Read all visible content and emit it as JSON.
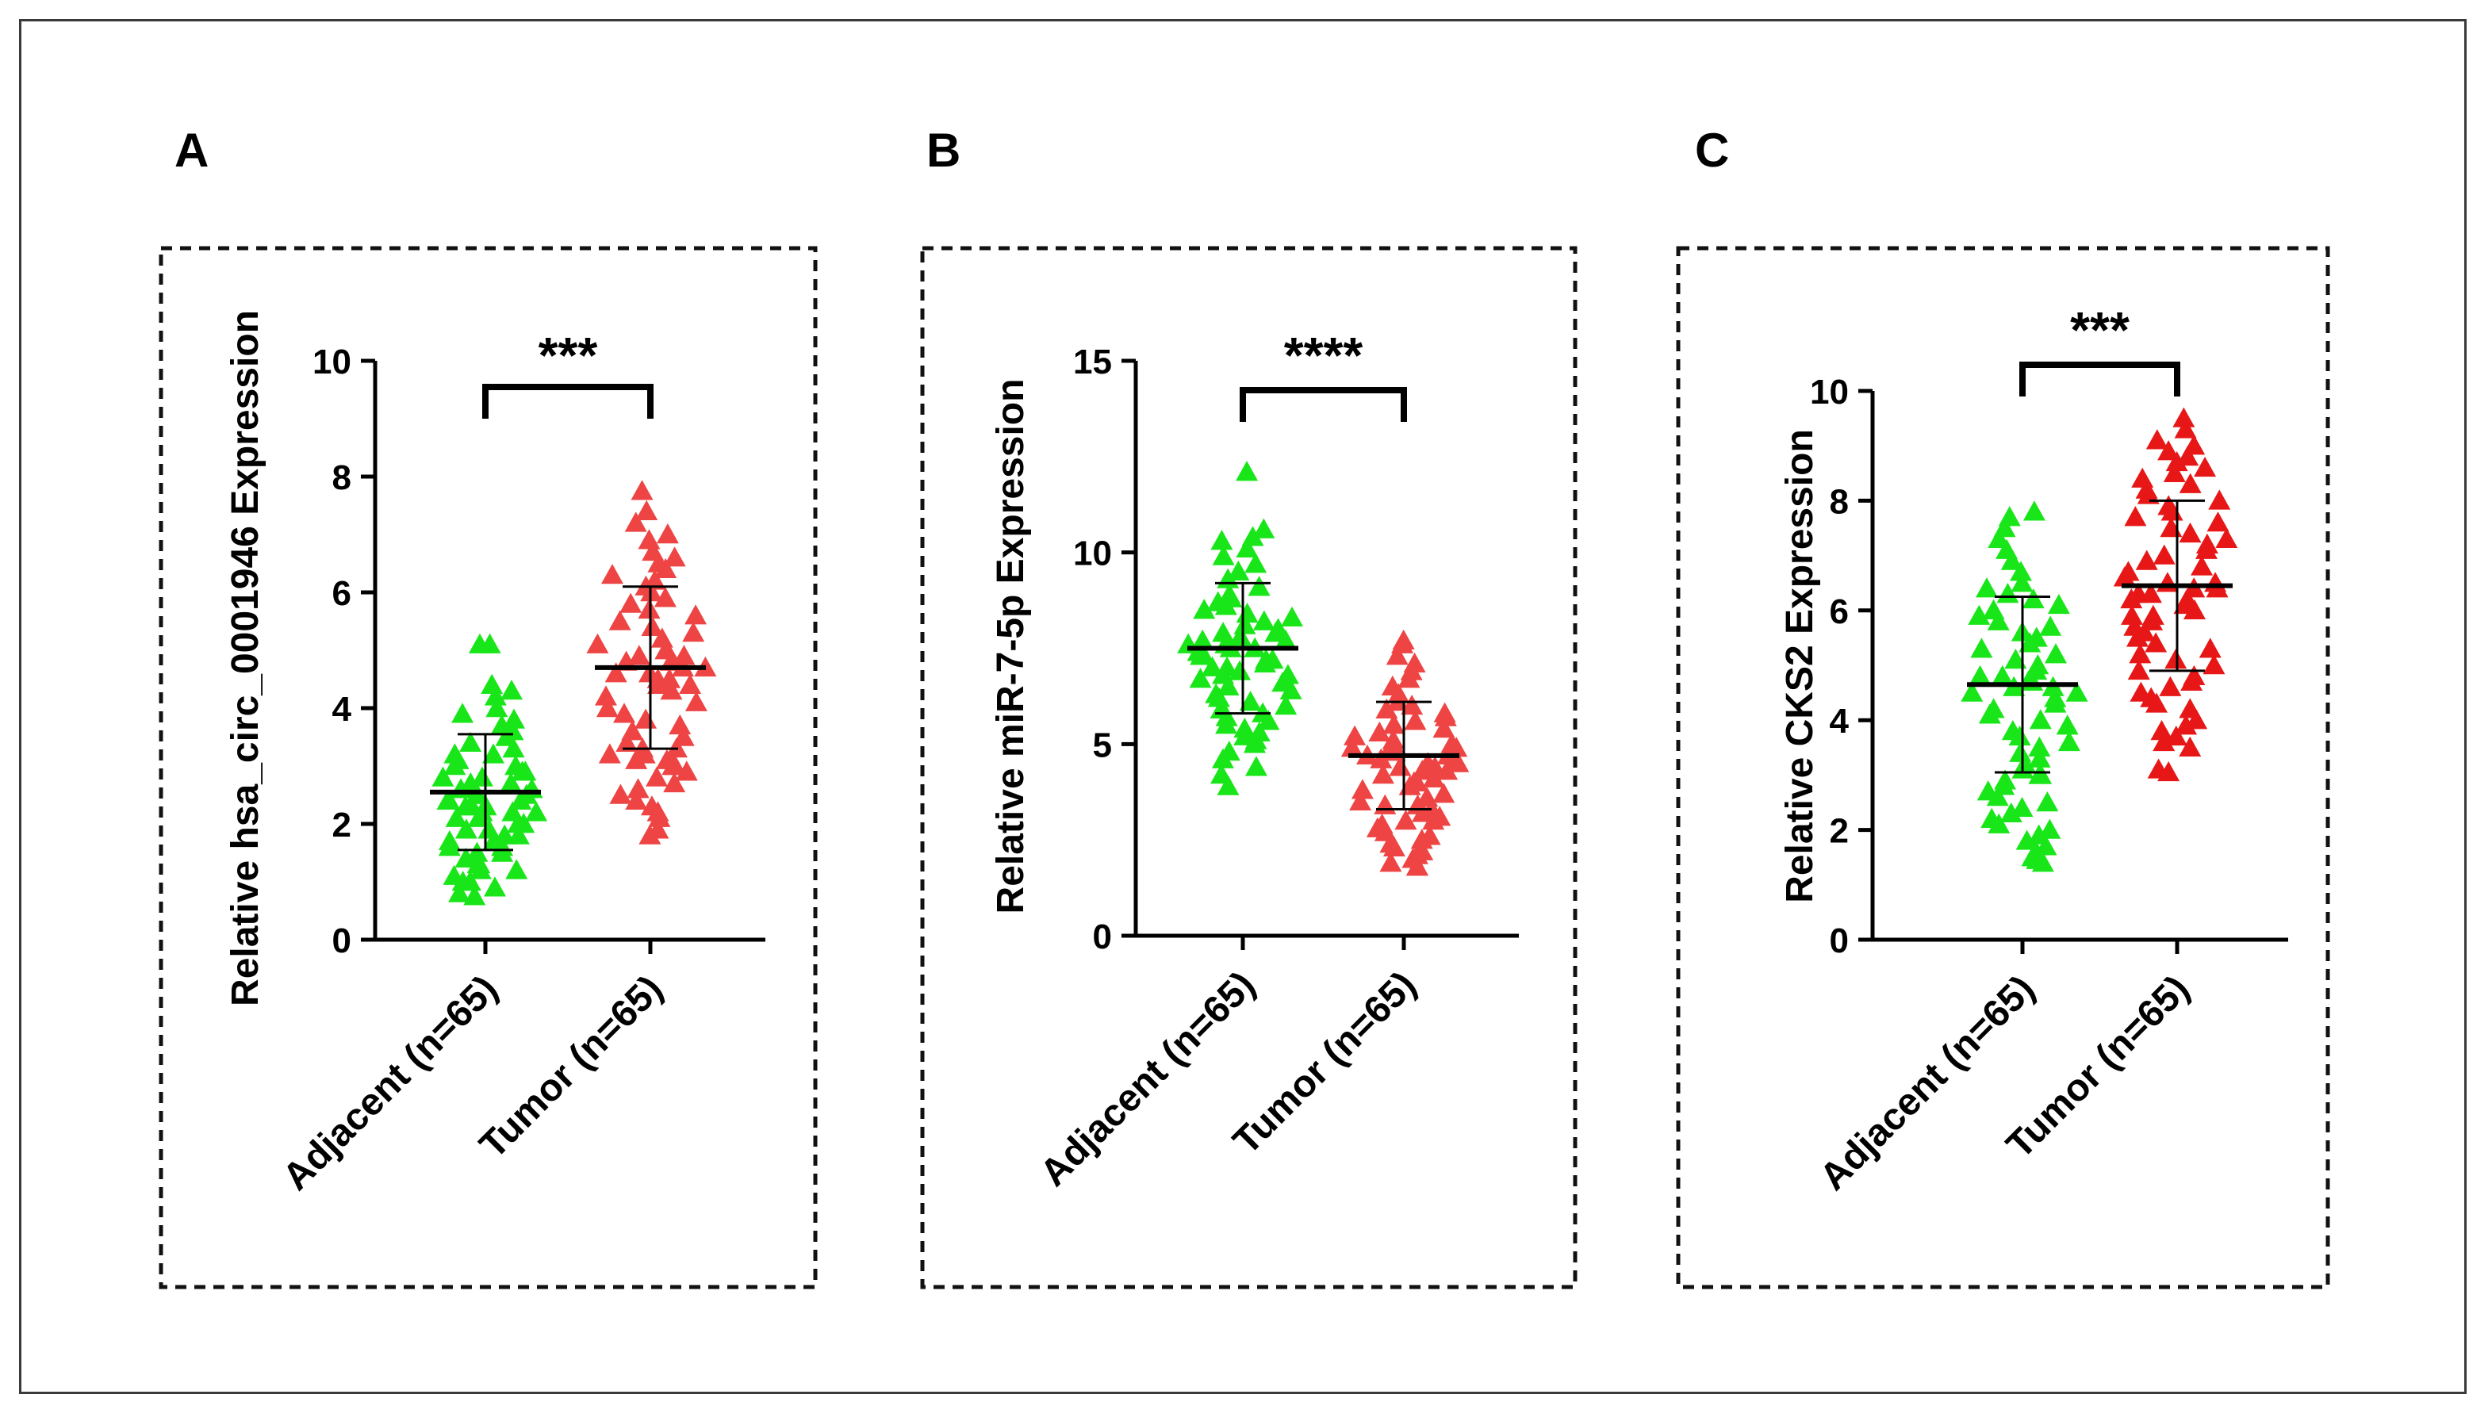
{
  "figure": {
    "colors": {
      "adjacent": "#19e619",
      "tumor_A": "#ee4444",
      "tumor_B": "#ee4444",
      "tumor_C": "#e81717",
      "axis": "#000000"
    }
  },
  "chart_data": [
    {
      "type": "scatter",
      "panel": "A",
      "title": "",
      "xlabel": "",
      "ylabel": "Relative hsa_circ_0001946 Expression",
      "ylim": [
        0,
        10
      ],
      "yticks": [
        "0",
        "2",
        "4",
        "6",
        "8",
        "10"
      ],
      "categories": [
        "Adjacent (n=65)",
        "Tumor (n=65)"
      ],
      "significance": "***",
      "series": [
        {
          "name": "Adjacent (n=65)",
          "mean": 2.55,
          "sd_low": 1.55,
          "sd_high": 3.55,
          "values": [
            5.1,
            5.1,
            4.4,
            4.3,
            4.2,
            4.0,
            3.9,
            3.8,
            3.7,
            3.6,
            3.5,
            3.4,
            3.3,
            3.2,
            3.2,
            3.1,
            3.0,
            3.0,
            2.9,
            2.9,
            2.8,
            2.8,
            2.7,
            2.7,
            2.6,
            2.6,
            2.6,
            2.5,
            2.5,
            2.5,
            2.4,
            2.4,
            2.4,
            2.3,
            2.3,
            2.3,
            2.2,
            2.2,
            2.2,
            2.1,
            2.1,
            2.0,
            2.0,
            1.9,
            1.9,
            1.8,
            1.8,
            1.7,
            1.7,
            1.6,
            1.6,
            1.5,
            1.5,
            1.4,
            1.4,
            1.3,
            1.3,
            1.2,
            1.2,
            1.1,
            1.0,
            1.0,
            0.9,
            0.8,
            0.75
          ]
        },
        {
          "name": "Tumor (n=65)",
          "mean": 4.7,
          "sd_low": 3.3,
          "sd_high": 6.1,
          "values": [
            7.75,
            7.4,
            7.2,
            7.0,
            6.9,
            6.7,
            6.6,
            6.5,
            6.4,
            6.3,
            6.2,
            6.1,
            6.0,
            5.9,
            5.8,
            5.7,
            5.6,
            5.5,
            5.4,
            5.3,
            5.2,
            5.1,
            5.0,
            5.0,
            4.9,
            4.9,
            4.8,
            4.8,
            4.7,
            4.7,
            4.6,
            4.6,
            4.5,
            4.5,
            4.4,
            4.4,
            4.3,
            4.2,
            4.1,
            4.0,
            3.9,
            3.8,
            3.7,
            3.6,
            3.5,
            3.4,
            3.3,
            3.3,
            3.2,
            3.2,
            3.1,
            3.1,
            3.0,
            3.0,
            2.9,
            2.8,
            2.7,
            2.6,
            2.5,
            2.4,
            2.3,
            2.2,
            2.1,
            1.9,
            1.8
          ]
        }
      ]
    },
    {
      "type": "scatter",
      "panel": "B",
      "title": "",
      "xlabel": "",
      "ylabel": "Relative miR-7-5p Expression",
      "ylim": [
        0,
        15
      ],
      "yticks": [
        "0",
        "5",
        "10",
        "15"
      ],
      "categories": [
        "Adjacent (n=65)",
        "Tumor (n=65)"
      ],
      "significance": "****",
      "series": [
        {
          "name": "Adjacent (n=65)",
          "mean": 7.5,
          "sd_low": 5.8,
          "sd_high": 9.2,
          "values": [
            12.1,
            10.6,
            10.4,
            10.3,
            10.1,
            9.9,
            9.7,
            9.5,
            9.3,
            9.1,
            8.9,
            8.8,
            8.7,
            8.6,
            8.5,
            8.4,
            8.3,
            8.2,
            8.1,
            8.0,
            7.9,
            7.9,
            7.8,
            7.8,
            7.7,
            7.7,
            7.6,
            7.6,
            7.5,
            7.5,
            7.4,
            7.4,
            7.3,
            7.3,
            7.2,
            7.2,
            7.1,
            7.0,
            7.0,
            6.9,
            6.8,
            6.8,
            6.7,
            6.6,
            6.5,
            6.4,
            6.3,
            6.2,
            6.1,
            6.0,
            5.9,
            5.8,
            5.7,
            5.6,
            5.5,
            5.4,
            5.3,
            5.2,
            5.1,
            5.0,
            4.8,
            4.6,
            4.4,
            4.2,
            3.9
          ]
        },
        {
          "name": "Tumor (n=65)",
          "mean": 4.7,
          "sd_low": 3.3,
          "sd_high": 6.1,
          "values": [
            7.7,
            7.6,
            7.3,
            7.1,
            6.9,
            6.7,
            6.5,
            6.3,
            6.1,
            6.0,
            5.9,
            5.8,
            5.7,
            5.6,
            5.5,
            5.4,
            5.3,
            5.2,
            5.1,
            5.0,
            5.0,
            4.9,
            4.9,
            4.8,
            4.8,
            4.7,
            4.7,
            4.6,
            4.6,
            4.5,
            4.5,
            4.4,
            4.4,
            4.3,
            4.3,
            4.2,
            4.1,
            4.0,
            4.0,
            3.9,
            3.8,
            3.7,
            3.6,
            3.5,
            3.4,
            3.4,
            3.3,
            3.2,
            3.1,
            3.0,
            3.0,
            2.9,
            2.8,
            2.7,
            2.6,
            2.5,
            2.4,
            2.3,
            2.2,
            2.1,
            2.0,
            2.0,
            1.9,
            1.8,
            1.8
          ]
        }
      ]
    },
    {
      "type": "scatter",
      "panel": "C",
      "title": "",
      "xlabel": "",
      "ylabel": "Relative CKS2 Expression",
      "ylim": [
        0,
        10
      ],
      "yticks": [
        "0",
        "2",
        "4",
        "6",
        "8",
        "10"
      ],
      "categories": [
        "Adjacent (n=65)",
        "Tumor (n=65)"
      ],
      "significance": "***",
      "series": [
        {
          "name": "Adjacent (n=65)",
          "mean": 4.65,
          "sd_low": 3.05,
          "sd_high": 6.25,
          "values": [
            7.8,
            7.7,
            7.5,
            7.3,
            7.1,
            6.9,
            6.7,
            6.5,
            6.4,
            6.3,
            6.2,
            6.1,
            6.0,
            5.9,
            5.8,
            5.7,
            5.6,
            5.5,
            5.4,
            5.3,
            5.2,
            5.1,
            5.0,
            4.9,
            4.8,
            4.8,
            4.7,
            4.7,
            4.6,
            4.6,
            4.5,
            4.5,
            4.4,
            4.3,
            4.2,
            4.1,
            4.0,
            3.9,
            3.8,
            3.7,
            3.6,
            3.5,
            3.4,
            3.3,
            3.2,
            3.1,
            3.0,
            3.0,
            2.9,
            2.8,
            2.7,
            2.6,
            2.5,
            2.4,
            2.3,
            2.2,
            2.1,
            2.0,
            1.9,
            1.8,
            1.7,
            1.6,
            1.5,
            1.45,
            1.4
          ]
        },
        {
          "name": "Tumor (n=65)",
          "mean": 6.45,
          "sd_low": 4.9,
          "sd_high": 8.0,
          "values": [
            9.5,
            9.3,
            9.1,
            9.0,
            8.9,
            8.8,
            8.7,
            8.6,
            8.5,
            8.4,
            8.3,
            8.2,
            8.1,
            8.0,
            7.9,
            7.8,
            7.7,
            7.6,
            7.5,
            7.4,
            7.3,
            7.2,
            7.1,
            7.0,
            6.9,
            6.8,
            6.7,
            6.6,
            6.5,
            6.5,
            6.4,
            6.4,
            6.3,
            6.3,
            6.2,
            6.2,
            6.1,
            6.0,
            5.9,
            5.9,
            5.8,
            5.7,
            5.6,
            5.5,
            5.4,
            5.3,
            5.2,
            5.1,
            5.0,
            4.9,
            4.8,
            4.7,
            4.6,
            4.5,
            4.4,
            4.3,
            4.2,
            4.0,
            3.9,
            3.8,
            3.7,
            3.6,
            3.5,
            3.1,
            3.05
          ]
        }
      ]
    }
  ]
}
